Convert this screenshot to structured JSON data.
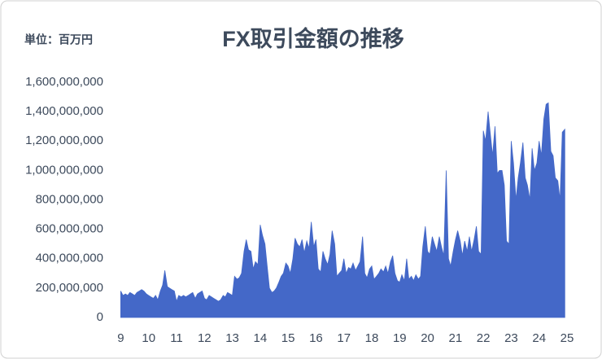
{
  "chart_data": {
    "type": "area",
    "title": "FX取引金額の推移",
    "unit_label": "単位：百万円",
    "color": "#4468c8",
    "x": [
      9,
      9.08,
      9.17,
      9.25,
      9.33,
      9.42,
      9.5,
      9.58,
      9.67,
      9.75,
      9.83,
      9.92,
      10,
      10.08,
      10.17,
      10.25,
      10.33,
      10.42,
      10.5,
      10.58,
      10.67,
      10.75,
      10.83,
      10.92,
      11,
      11.08,
      11.17,
      11.25,
      11.33,
      11.42,
      11.5,
      11.58,
      11.67,
      11.75,
      11.83,
      11.92,
      12,
      12.08,
      12.17,
      12.25,
      12.33,
      12.42,
      12.5,
      12.58,
      12.67,
      12.75,
      12.83,
      12.92,
      13,
      13.08,
      13.17,
      13.25,
      13.33,
      13.42,
      13.5,
      13.58,
      13.67,
      13.75,
      13.83,
      13.92,
      14,
      14.08,
      14.17,
      14.25,
      14.33,
      14.42,
      14.5,
      14.58,
      14.67,
      14.75,
      14.83,
      14.92,
      15,
      15.08,
      15.17,
      15.25,
      15.33,
      15.42,
      15.5,
      15.58,
      15.67,
      15.75,
      15.83,
      15.92,
      16,
      16.08,
      16.17,
      16.25,
      16.33,
      16.42,
      16.5,
      16.58,
      16.67,
      16.75,
      16.83,
      16.92,
      17,
      17.08,
      17.17,
      17.25,
      17.33,
      17.42,
      17.5,
      17.58,
      17.67,
      17.75,
      17.83,
      17.92,
      18,
      18.08,
      18.17,
      18.25,
      18.33,
      18.42,
      18.5,
      18.58,
      18.67,
      18.75,
      18.83,
      18.92,
      19,
      19.08,
      19.17,
      19.25,
      19.33,
      19.42,
      19.5,
      19.58,
      19.67,
      19.75,
      19.83,
      19.92,
      20,
      20.08,
      20.17,
      20.25,
      20.33,
      20.42,
      20.5,
      20.58,
      20.67,
      20.75,
      20.83,
      20.92,
      21,
      21.08,
      21.17,
      21.25,
      21.33,
      21.42,
      21.5,
      21.58,
      21.67,
      21.75,
      21.83,
      21.92,
      22,
      22.08,
      22.17,
      22.25,
      22.33,
      22.42,
      22.5,
      22.58,
      22.67,
      22.75,
      22.83,
      22.92,
      23,
      23.08,
      23.17,
      23.25,
      23.33,
      23.42,
      23.5,
      23.58,
      23.67,
      23.75,
      23.83,
      23.92,
      24,
      24.08,
      24.17,
      24.25,
      24.33,
      24.42,
      24.5,
      24.58,
      24.67,
      24.75,
      24.83,
      24.92
    ],
    "values": [
      180000000,
      150000000,
      160000000,
      150000000,
      170000000,
      160000000,
      150000000,
      170000000,
      180000000,
      190000000,
      180000000,
      160000000,
      150000000,
      140000000,
      130000000,
      150000000,
      120000000,
      180000000,
      220000000,
      320000000,
      210000000,
      200000000,
      190000000,
      180000000,
      110000000,
      150000000,
      140000000,
      150000000,
      140000000,
      150000000,
      160000000,
      170000000,
      130000000,
      160000000,
      170000000,
      180000000,
      130000000,
      120000000,
      150000000,
      140000000,
      130000000,
      120000000,
      110000000,
      120000000,
      150000000,
      140000000,
      170000000,
      160000000,
      150000000,
      280000000,
      260000000,
      270000000,
      300000000,
      450000000,
      530000000,
      460000000,
      450000000,
      330000000,
      380000000,
      360000000,
      630000000,
      560000000,
      500000000,
      350000000,
      200000000,
      170000000,
      180000000,
      200000000,
      240000000,
      280000000,
      300000000,
      370000000,
      350000000,
      300000000,
      400000000,
      540000000,
      500000000,
      480000000,
      530000000,
      440000000,
      520000000,
      470000000,
      650000000,
      480000000,
      530000000,
      330000000,
      310000000,
      450000000,
      400000000,
      360000000,
      430000000,
      590000000,
      500000000,
      280000000,
      300000000,
      320000000,
      400000000,
      300000000,
      340000000,
      330000000,
      370000000,
      320000000,
      350000000,
      380000000,
      550000000,
      300000000,
      270000000,
      330000000,
      350000000,
      260000000,
      280000000,
      300000000,
      330000000,
      310000000,
      350000000,
      300000000,
      380000000,
      420000000,
      300000000,
      250000000,
      240000000,
      290000000,
      250000000,
      400000000,
      260000000,
      280000000,
      250000000,
      290000000,
      260000000,
      280000000,
      480000000,
      620000000,
      450000000,
      430000000,
      550000000,
      500000000,
      450000000,
      550000000,
      480000000,
      420000000,
      1000000000,
      400000000,
      350000000,
      450000000,
      530000000,
      590000000,
      520000000,
      420000000,
      520000000,
      450000000,
      550000000,
      450000000,
      530000000,
      620000000,
      450000000,
      430000000,
      1270000000,
      1200000000,
      1400000000,
      1250000000,
      1100000000,
      1300000000,
      980000000,
      1000000000,
      1000000000,
      900000000,
      520000000,
      500000000,
      1200000000,
      1050000000,
      800000000,
      950000000,
      1050000000,
      1190000000,
      950000000,
      900000000,
      800000000,
      1150000000,
      1000000000,
      1050000000,
      1200000000,
      1100000000,
      1350000000,
      1450000000,
      1460000000,
      1130000000,
      1100000000,
      950000000,
      930000000,
      800000000,
      1260000000,
      1280000000
    ],
    "xlim": [
      8.9,
      25
    ],
    "xticks": [
      9,
      10,
      11,
      12,
      13,
      14,
      15,
      16,
      17,
      18,
      19,
      20,
      21,
      22,
      23,
      24,
      25
    ],
    "ylim": [
      0,
      1600000000
    ],
    "yticks": [
      0,
      {
        "value": 200000000,
        "label": "200,000,000"
      },
      {
        "value": 400000000,
        "label": "400,000,000"
      },
      {
        "value": 600000000,
        "label": "600,000,000"
      },
      {
        "value": 800000000,
        "label": "800,000,000"
      },
      {
        "value": 1000000000,
        "label": "1,000,000,000"
      },
      {
        "value": 1200000000,
        "label": "1,200,000,000"
      },
      {
        "value": 1400000000,
        "label": "1,400,000,000"
      },
      {
        "value": 1600000000,
        "label": "1,600,000,000"
      }
    ],
    "grid": false
  }
}
